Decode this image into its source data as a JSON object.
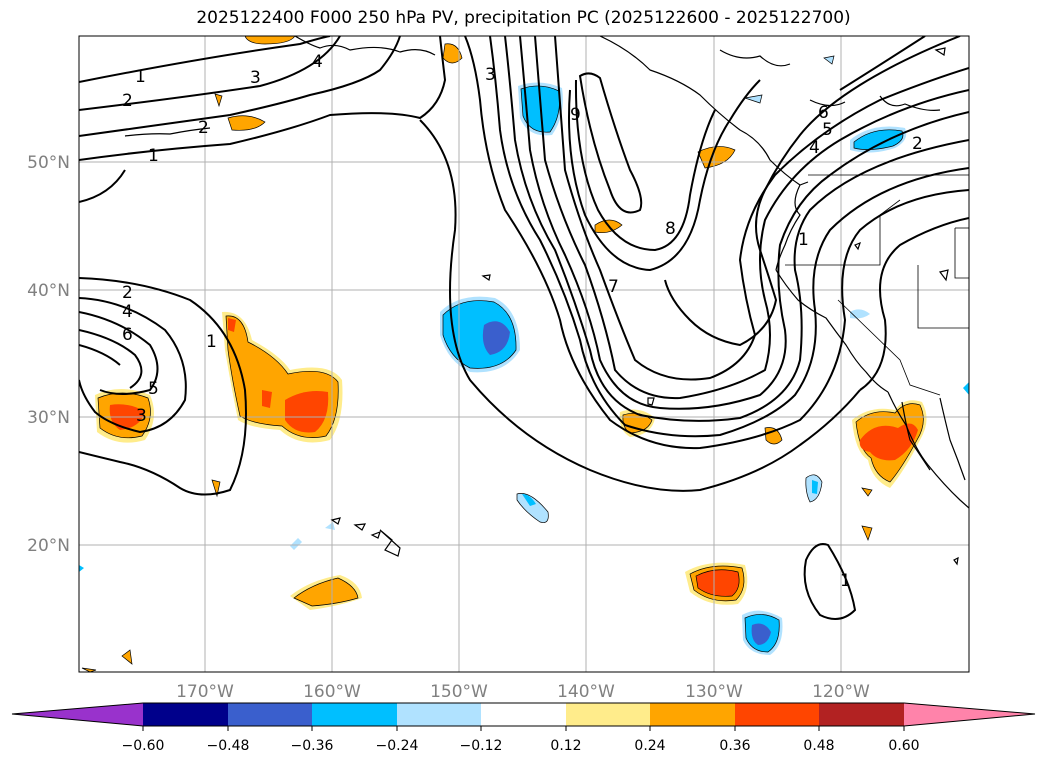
{
  "title": "2025122400 F000 250 hPa PV, precipitation PC (2025122600 - 2025122700)",
  "map": {
    "lat_labels": [
      "50°N",
      "40°N",
      "30°N",
      "20°N"
    ],
    "lon_labels": [
      "170°W",
      "160°W",
      "150°W",
      "140°W",
      "130°W",
      "120°W"
    ],
    "grid": true,
    "contour_labels": [
      "1",
      "2",
      "2",
      "1",
      "3",
      "4",
      "3",
      "9",
      "6",
      "5",
      "4",
      "2",
      "8",
      "1",
      "7",
      "2",
      "4",
      "6",
      "5",
      "3",
      "1",
      "1"
    ]
  },
  "colorbar": {
    "ticks": [
      "−0.60",
      "−0.48",
      "−0.36",
      "−0.24",
      "−0.12",
      "0.12",
      "0.24",
      "0.36",
      "0.48",
      "0.60"
    ],
    "colors": [
      "#9932cc",
      "#00008b",
      "#3a5fcd",
      "#00bfff",
      "#b0e2ff",
      "#ffffff",
      "#ffec8b",
      "#ffa500",
      "#ff4500",
      "#b22222",
      "#ff83aa"
    ]
  }
}
